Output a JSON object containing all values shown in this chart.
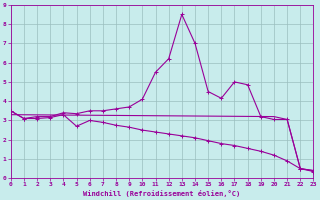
{
  "bg_color": "#c8ecec",
  "grid_color": "#9bbfbf",
  "line_color": "#990099",
  "xlabel": "Windchill (Refroidissement éolien,°C)",
  "xlim": [
    0,
    23
  ],
  "ylim": [
    0,
    9
  ],
  "xticks": [
    0,
    1,
    2,
    3,
    4,
    5,
    6,
    7,
    8,
    9,
    10,
    11,
    12,
    13,
    14,
    15,
    16,
    17,
    18,
    19,
    20,
    21,
    22,
    23
  ],
  "yticks": [
    0,
    1,
    2,
    3,
    4,
    5,
    6,
    7,
    8,
    9
  ],
  "curve1_x": [
    0,
    1,
    2,
    3,
    4,
    5,
    6,
    7,
    8,
    9,
    10,
    11,
    12,
    13,
    14,
    15,
    16,
    17,
    18,
    19,
    20,
    21,
    22,
    23
  ],
  "curve1_y": [
    3.5,
    3.1,
    3.2,
    3.2,
    3.4,
    3.35,
    3.5,
    3.5,
    3.6,
    3.7,
    4.1,
    5.5,
    6.2,
    8.5,
    7.0,
    4.5,
    4.15,
    5.0,
    4.85,
    3.2,
    3.05,
    3.05,
    0.5,
    0.4
  ],
  "curve2_x": [
    0,
    1,
    2,
    3,
    4,
    5,
    6,
    7,
    8,
    9,
    10,
    11,
    12,
    13,
    14,
    15,
    16,
    17,
    18,
    19,
    20,
    21,
    22,
    23
  ],
  "curve2_y": [
    3.5,
    3.1,
    3.1,
    3.15,
    3.3,
    2.7,
    3.0,
    2.9,
    2.75,
    2.65,
    2.5,
    2.4,
    2.3,
    2.2,
    2.1,
    1.95,
    1.8,
    1.7,
    1.55,
    1.4,
    1.2,
    0.9,
    0.5,
    0.35
  ],
  "curve3_x": [
    0,
    20,
    21,
    22,
    23
  ],
  "curve3_y": [
    3.3,
    3.2,
    3.05,
    0.5,
    0.4
  ]
}
